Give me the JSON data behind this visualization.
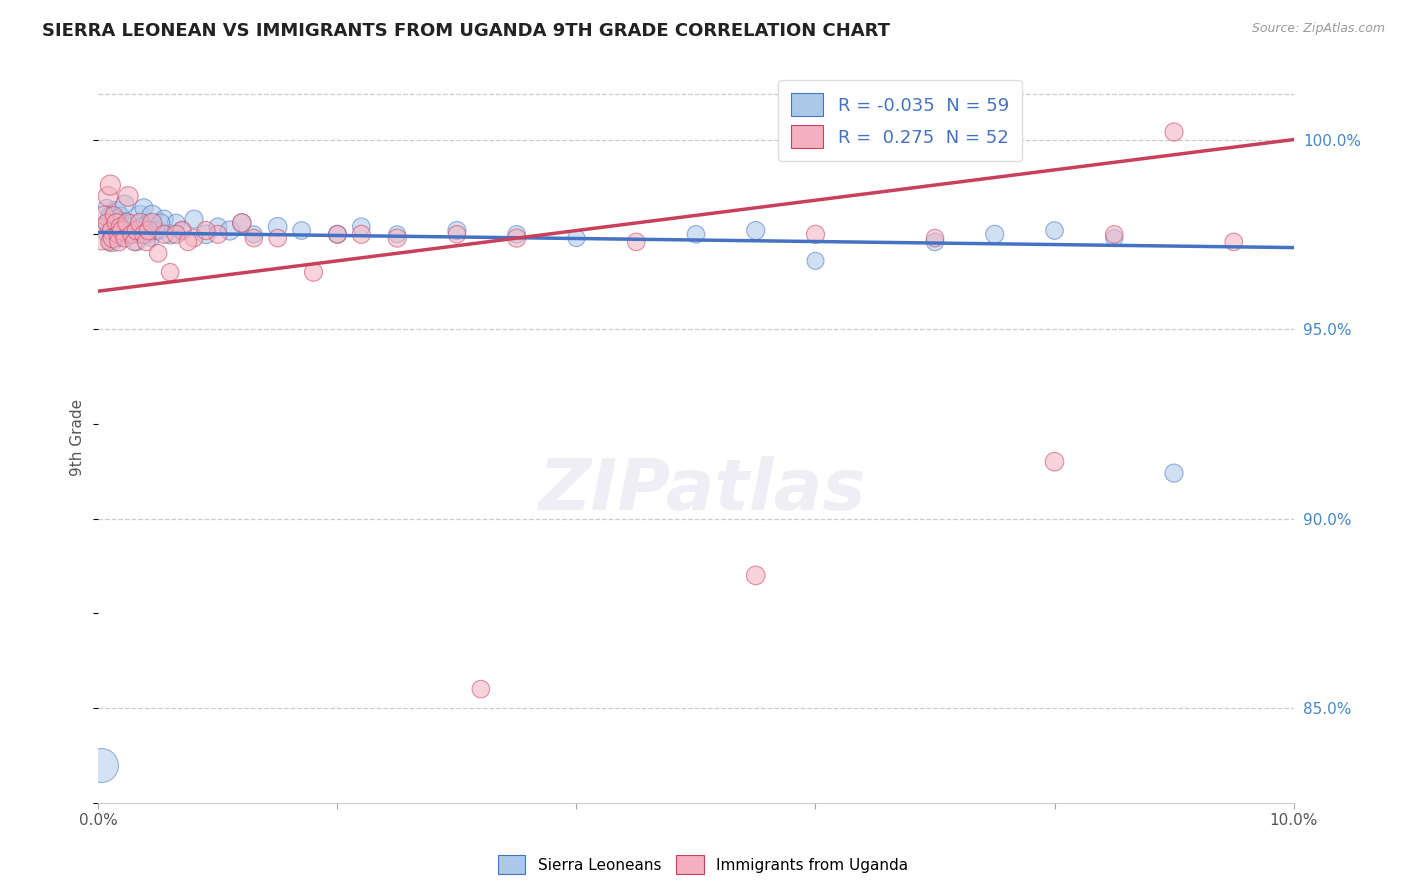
{
  "title": "SIERRA LEONEAN VS IMMIGRANTS FROM UGANDA 9TH GRADE CORRELATION CHART",
  "source": "Source: ZipAtlas.com",
  "ylabel": "9th Grade",
  "xlim": [
    0.0,
    10.0
  ],
  "ylim": [
    82.5,
    101.8
  ],
  "r_blue": -0.035,
  "n_blue": 59,
  "r_pink": 0.275,
  "n_pink": 52,
  "color_blue": "#aac8e8",
  "color_pink": "#f4b0c0",
  "line_color_blue": "#4472c4",
  "line_color_pink": "#c8405a",
  "legend_label_blue": "Sierra Leoneans",
  "legend_label_pink": "Immigrants from Uganda",
  "blue_trend_x0": 0.0,
  "blue_trend_y0": 97.55,
  "blue_trend_x1": 10.0,
  "blue_trend_y1": 97.15,
  "pink_trend_x0": 0.0,
  "pink_trend_y0": 96.0,
  "pink_trend_x1": 10.0,
  "pink_trend_y1": 100.0,
  "blue_x": [
    0.05,
    0.06,
    0.07,
    0.08,
    0.09,
    0.1,
    0.11,
    0.12,
    0.13,
    0.14,
    0.15,
    0.16,
    0.17,
    0.18,
    0.19,
    0.2,
    0.22,
    0.24,
    0.26,
    0.28,
    0.3,
    0.35,
    0.38,
    0.4,
    0.42,
    0.45,
    0.5,
    0.55,
    0.6,
    0.65,
    0.7,
    0.8,
    0.9,
    1.0,
    1.1,
    1.2,
    1.3,
    1.5,
    1.7,
    2.0,
    2.2,
    2.5,
    3.0,
    3.5,
    4.0,
    5.0,
    5.5,
    6.0,
    7.0,
    7.5,
    8.0,
    8.5,
    9.0,
    0.32,
    0.34,
    0.36,
    0.44,
    0.48,
    0.52
  ],
  "blue_y": [
    97.8,
    97.5,
    98.2,
    97.9,
    98.0,
    97.6,
    97.3,
    97.7,
    97.5,
    97.9,
    98.1,
    97.4,
    97.8,
    97.6,
    98.0,
    97.5,
    98.3,
    97.7,
    97.5,
    97.8,
    97.6,
    98.0,
    98.2,
    97.5,
    97.8,
    98.0,
    97.6,
    97.9,
    97.5,
    97.8,
    97.6,
    97.9,
    97.5,
    97.7,
    97.6,
    97.8,
    97.5,
    97.7,
    97.6,
    97.5,
    97.7,
    97.5,
    97.6,
    97.5,
    97.4,
    97.5,
    97.6,
    96.8,
    97.3,
    97.5,
    97.6,
    97.4,
    91.2,
    97.3,
    97.5,
    97.7,
    97.4,
    97.6,
    97.8
  ],
  "blue_sizes": [
    120,
    100,
    150,
    130,
    140,
    180,
    200,
    160,
    190,
    170,
    210,
    150,
    180,
    160,
    140,
    200,
    170,
    190,
    150,
    160,
    180,
    200,
    170,
    190,
    160,
    210,
    180,
    170,
    190,
    160,
    150,
    170,
    180,
    160,
    190,
    170,
    150,
    180,
    160,
    170,
    160,
    150,
    170,
    160,
    150,
    160,
    170,
    150,
    160,
    170,
    160,
    150,
    170,
    160,
    170,
    160,
    150,
    160,
    170
  ],
  "blue_large_x": [
    0.02
  ],
  "blue_large_y": [
    83.5
  ],
  "blue_large_sizes": [
    600
  ],
  "pink_x": [
    0.03,
    0.05,
    0.07,
    0.08,
    0.09,
    0.1,
    0.11,
    0.12,
    0.13,
    0.15,
    0.16,
    0.17,
    0.18,
    0.2,
    0.22,
    0.24,
    0.25,
    0.28,
    0.3,
    0.32,
    0.35,
    0.38,
    0.4,
    0.42,
    0.45,
    0.5,
    0.55,
    0.6,
    0.7,
    0.8,
    1.0,
    1.2,
    1.5,
    1.8,
    2.0,
    2.5,
    3.0,
    3.5,
    4.5,
    5.5,
    6.0,
    7.0,
    8.0,
    8.5,
    9.0,
    9.5,
    0.65,
    0.75,
    0.9,
    1.3,
    2.2,
    3.2
  ],
  "pink_y": [
    97.5,
    98.0,
    97.8,
    98.5,
    97.3,
    98.8,
    97.6,
    97.4,
    98.0,
    97.8,
    97.5,
    97.3,
    97.7,
    97.6,
    97.4,
    97.8,
    98.5,
    97.5,
    97.3,
    97.6,
    97.8,
    97.5,
    97.3,
    97.6,
    97.8,
    97.0,
    97.5,
    96.5,
    97.6,
    97.4,
    97.5,
    97.8,
    97.4,
    96.5,
    97.5,
    97.4,
    97.5,
    97.4,
    97.3,
    88.5,
    97.5,
    97.4,
    91.5,
    97.5,
    100.2,
    97.3,
    97.5,
    97.3,
    97.6,
    97.4,
    97.5,
    85.5
  ],
  "pink_sizes": [
    500,
    180,
    160,
    200,
    150,
    210,
    170,
    190,
    160,
    180,
    150,
    170,
    160,
    190,
    160,
    180,
    200,
    170,
    160,
    180,
    190,
    170,
    160,
    180,
    190,
    160,
    170,
    160,
    180,
    160,
    170,
    180,
    160,
    170,
    160,
    170,
    160,
    170,
    160,
    180,
    170,
    160,
    180,
    160,
    170,
    160,
    170,
    160,
    170,
    160,
    170,
    160
  ]
}
